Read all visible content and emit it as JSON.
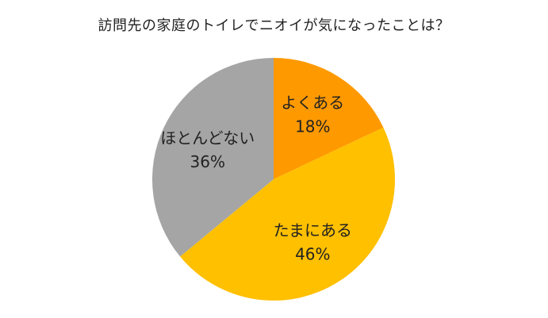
{
  "chart_data": {
    "type": "pie",
    "title": "訪問先の家庭のトイレでニオイが気になったことは？",
    "slices": [
      {
        "label": "よくある",
        "value": 18,
        "value_label": "18%",
        "color": "#FF9900"
      },
      {
        "label": "たまにある",
        "value": 46,
        "value_label": "46%",
        "color": "#FFC000"
      },
      {
        "label": "ほとんどない",
        "value": 36,
        "value_label": "36%",
        "color": "#A5A5A5"
      }
    ],
    "start_angle": "12 o'clock",
    "direction": "clockwise",
    "legend": "none",
    "data_labels": "inside"
  }
}
